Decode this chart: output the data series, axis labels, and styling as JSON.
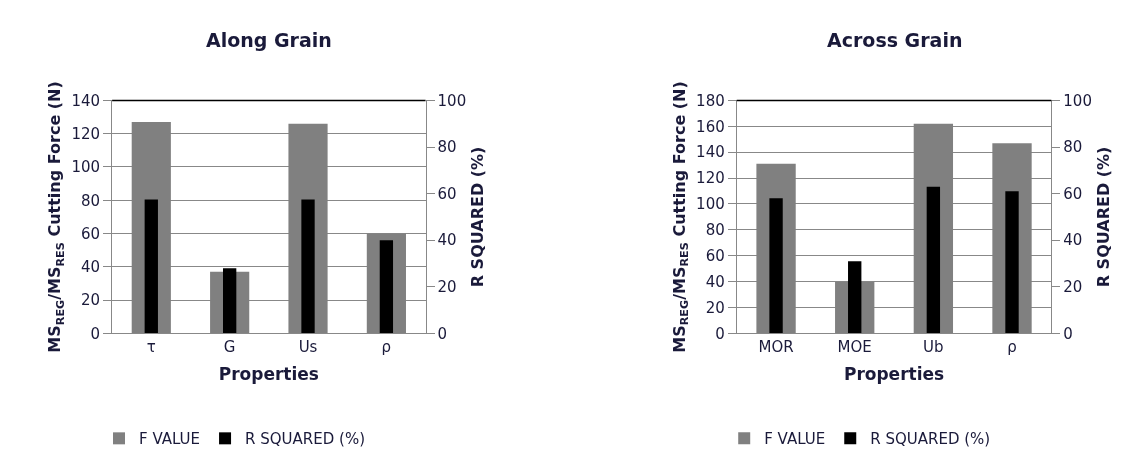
{
  "chart_data": [
    {
      "type": "bar",
      "title": "Along Grain",
      "xlabel": "Properties",
      "ylabel": "MS$_{REG}$/MS$_{RES}$ Cutting Force (N)",
      "y2label": "R SQUARED (%)",
      "categories": [
        "τ",
        "G",
        "Us",
        "ρ"
      ],
      "series": [
        {
          "name": "F VALUE",
          "color": "#808080",
          "values": [
            127,
            37,
            126,
            60
          ]
        },
        {
          "name": "R SQUARED (%)",
          "color": "#000000",
          "axis": "y2",
          "values": [
            57.5,
            28,
            57.5,
            40
          ]
        }
      ],
      "ylim": [
        0,
        140
      ],
      "yticks": [
        0,
        20,
        40,
        60,
        80,
        100,
        120,
        140
      ],
      "y2lim": [
        0,
        100
      ],
      "y2ticks": [
        0,
        20,
        40,
        60,
        80,
        100
      ],
      "grid": "y",
      "legend": "bottom"
    },
    {
      "type": "bar",
      "title": "Across Grain",
      "xlabel": "Properties",
      "ylabel": "MS$_{REG}$/MS$_{RES}$ Cutting Force (N)",
      "y2label": "R SQUARED (%)",
      "categories": [
        "MOR",
        "MOE",
        "Ub",
        "ρ"
      ],
      "series": [
        {
          "name": "F VALUE",
          "color": "#808080",
          "values": [
            131,
            40,
            162,
            147
          ]
        },
        {
          "name": "R SQUARED (%)",
          "color": "#000000",
          "axis": "y2",
          "values": [
            58,
            31,
            63,
            61
          ]
        }
      ],
      "ylim": [
        0,
        180
      ],
      "yticks": [
        0,
        20,
        40,
        60,
        80,
        100,
        120,
        140,
        160,
        180
      ],
      "y2lim": [
        0,
        100
      ],
      "y2ticks": [
        0,
        20,
        40,
        60,
        80,
        100
      ],
      "grid": "y",
      "legend": "bottom"
    }
  ]
}
